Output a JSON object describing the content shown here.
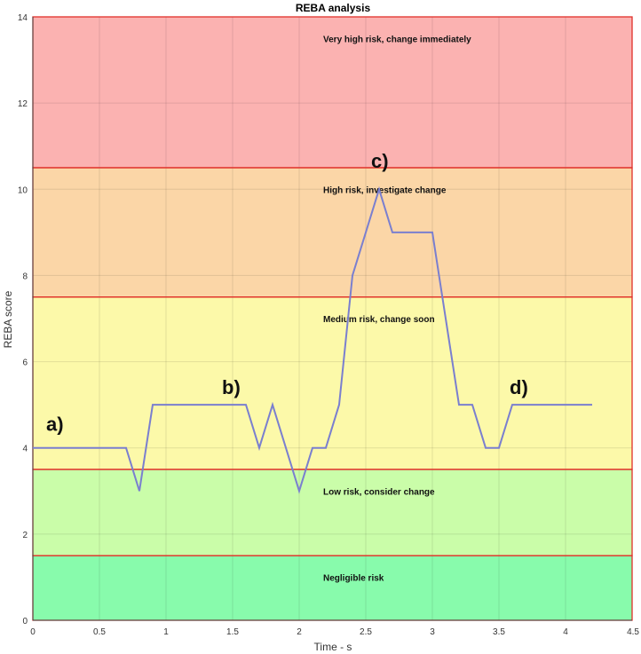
{
  "chart_data": {
    "type": "line",
    "title": "REBA analysis",
    "xlabel": "Time - s",
    "ylabel": "REBA score",
    "xlim": [
      0,
      4.5
    ],
    "ylim": [
      0,
      14
    ],
    "xticks": [
      "0",
      "0.5",
      "1",
      "1.5",
      "2",
      "2.5",
      "3",
      "3.5",
      "4",
      "4.5"
    ],
    "yticks": [
      "0",
      "2",
      "4",
      "6",
      "8",
      "10",
      "12",
      "14"
    ],
    "grid": true,
    "bands": [
      {
        "label": "Negligible risk",
        "from": 0,
        "to": 1.5,
        "color": "#88fbac",
        "label_y": 1
      },
      {
        "label": "Low risk, consider change",
        "from": 1.5,
        "to": 3.5,
        "color": "#cafda9",
        "label_y": 3
      },
      {
        "label": "Medium risk, change soon",
        "from": 3.5,
        "to": 7.5,
        "color": "#fcf9a9",
        "label_y": 7
      },
      {
        "label": "High risk, investigate change",
        "from": 7.5,
        "to": 10.5,
        "color": "#fbd6a7",
        "label_y": 10
      },
      {
        "label": "Very high risk, change immediately",
        "from": 10.5,
        "to": 14,
        "color": "#fbb2b1",
        "label_y": 13.5
      }
    ],
    "band_border_color": "#e0302a",
    "line_color": "#7a7fcf",
    "series": [
      {
        "x": [
          0,
          0.7,
          0.8,
          0.9,
          1.6,
          1.7,
          1.8,
          1.9,
          2.0,
          2.1,
          2.2,
          2.3,
          2.4,
          2.5,
          2.6,
          2.7,
          2.8,
          2.9,
          3.0,
          3.1,
          3.2,
          3.3,
          3.4,
          3.5,
          3.6,
          3.7,
          3.8,
          3.9,
          4.0,
          4.2
        ],
        "y": [
          4,
          4,
          3,
          5,
          5,
          4,
          5,
          4,
          3,
          4,
          4,
          5,
          8,
          9,
          10,
          9,
          9,
          9,
          9,
          7,
          5,
          5,
          4,
          4,
          5,
          5,
          5,
          5,
          5,
          5
        ]
      }
    ],
    "annotations": [
      {
        "text": "a)",
        "x": 0.1,
        "y": 4.4
      },
      {
        "text": "b)",
        "x": 1.42,
        "y": 5.25
      },
      {
        "text": "c)",
        "x": 2.54,
        "y": 10.5
      },
      {
        "text": "d)",
        "x": 3.58,
        "y": 5.25
      }
    ]
  }
}
